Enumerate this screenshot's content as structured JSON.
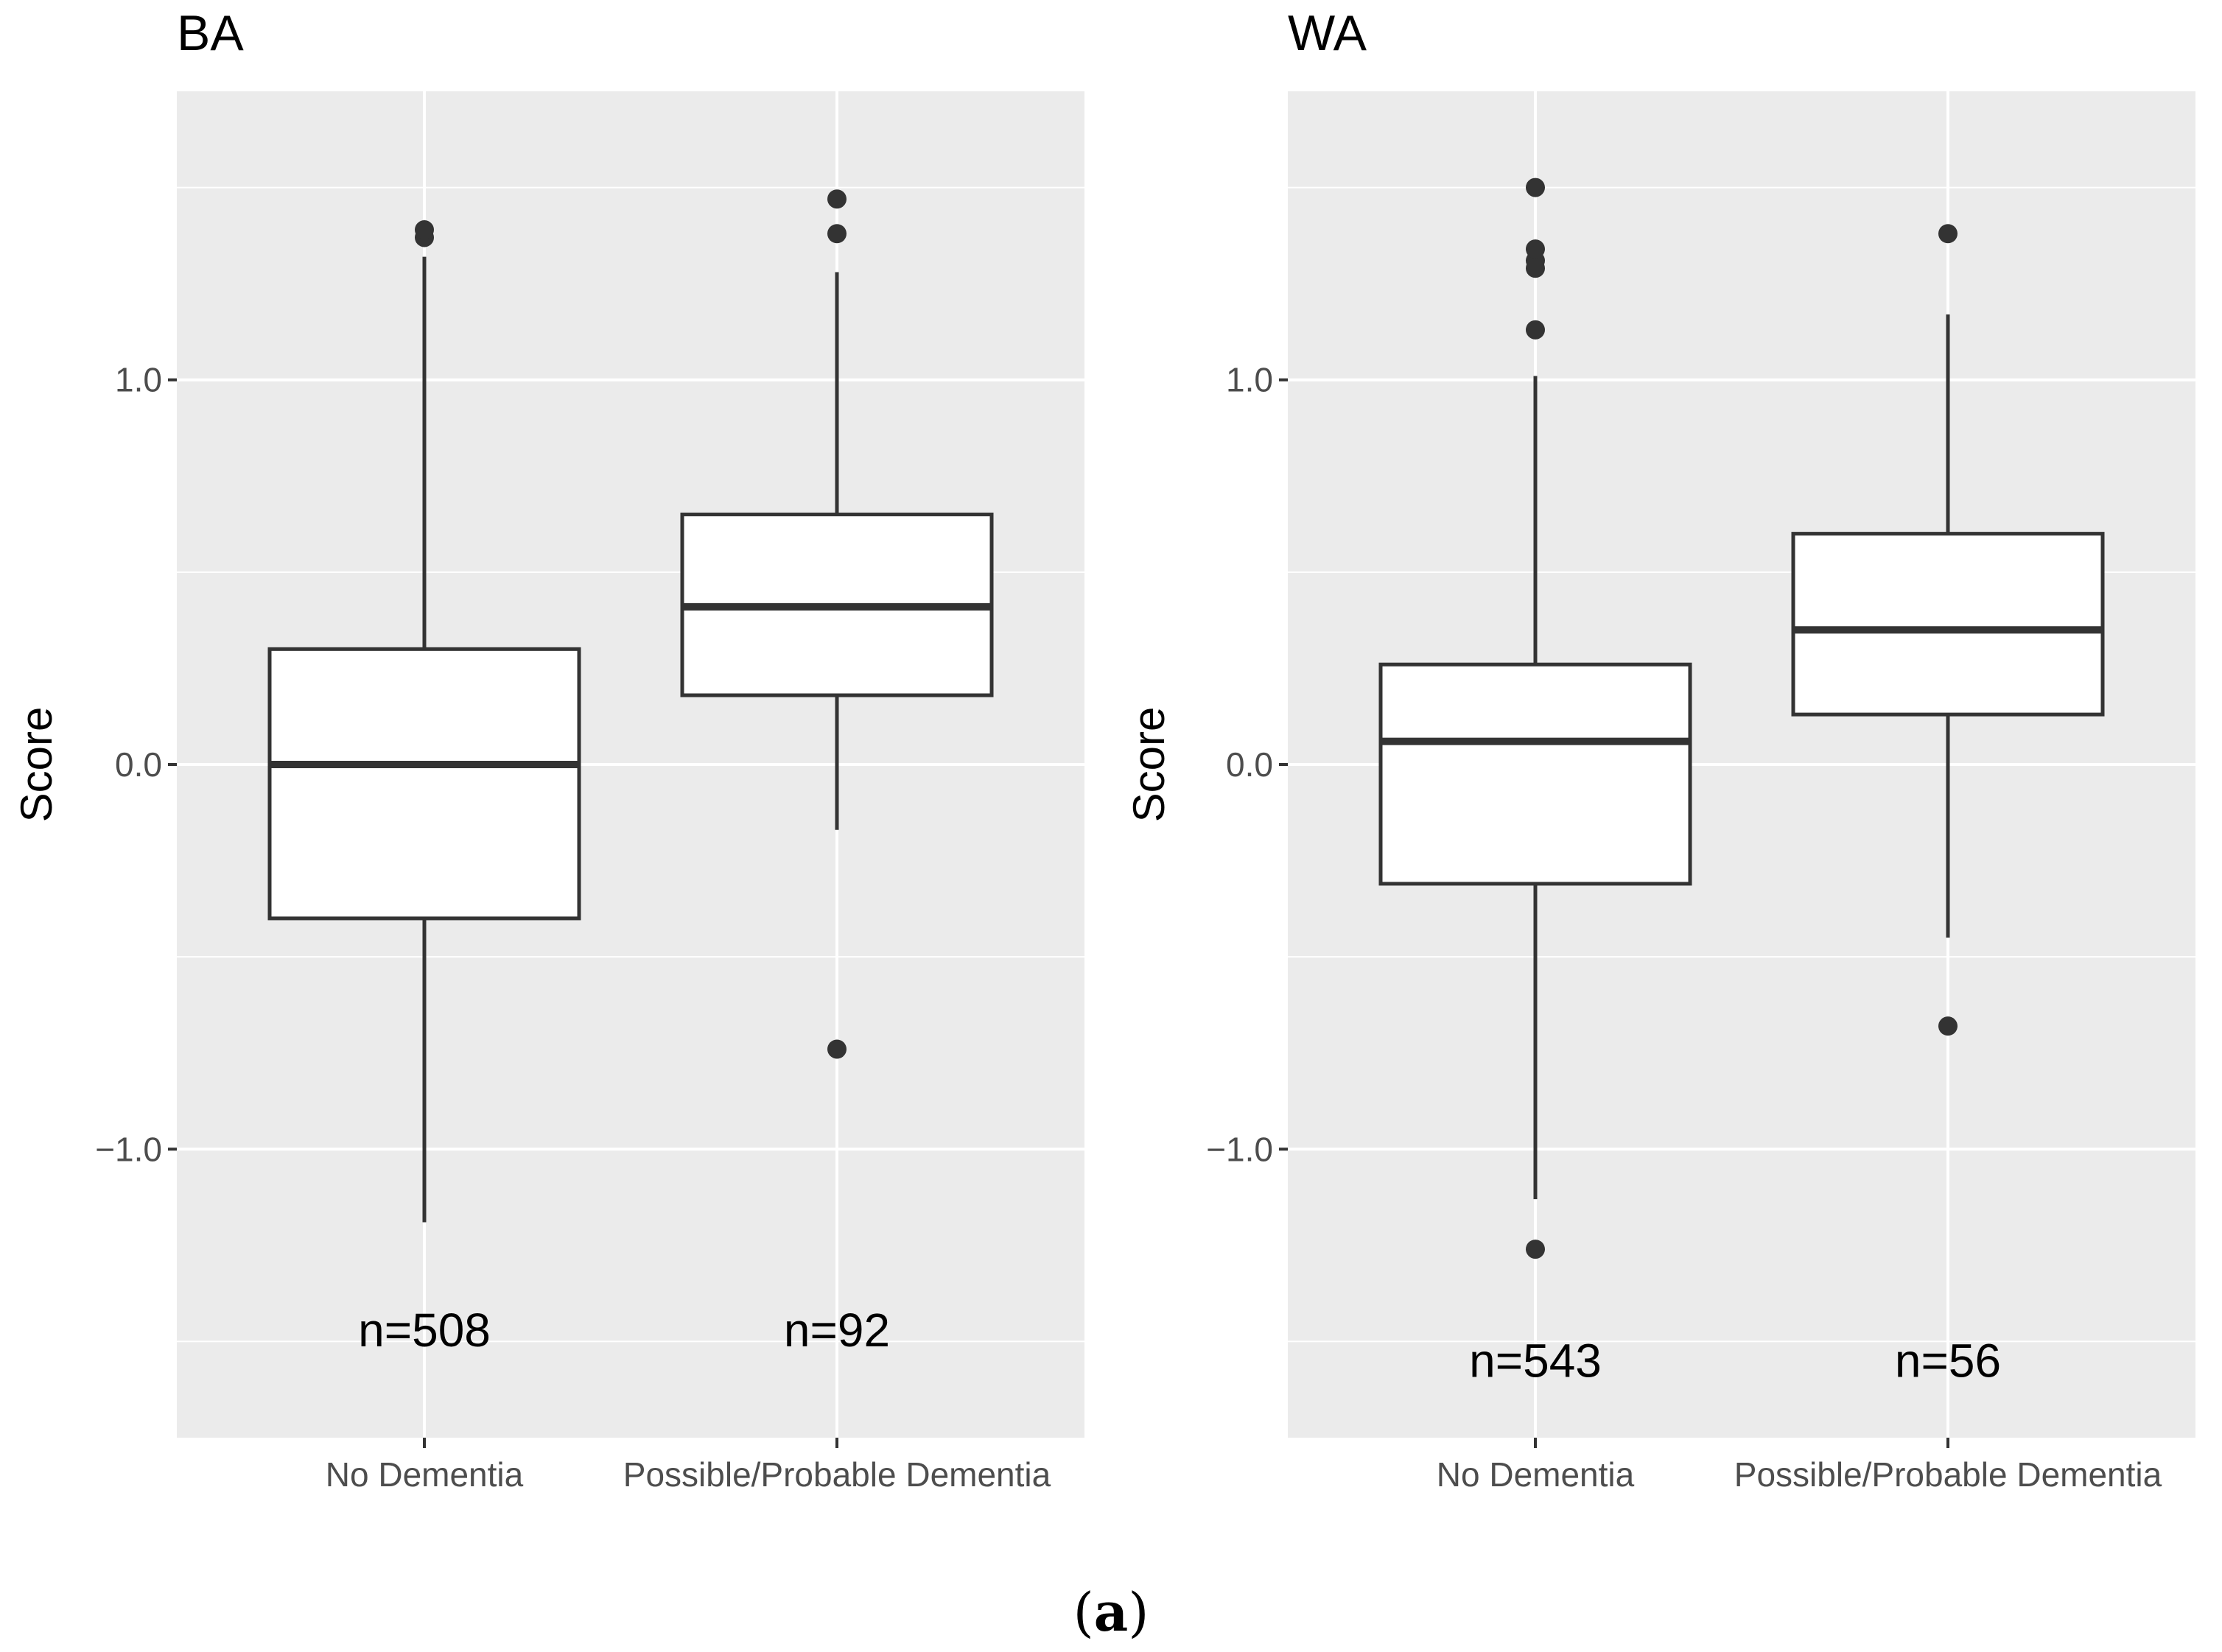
{
  "chart_data": [
    {
      "type": "box",
      "title": "BA",
      "ylabel": "Score",
      "xlabel": "",
      "ylim": [
        -1.75,
        1.75
      ],
      "yticks": [
        -1.0,
        0.0,
        1.0
      ],
      "ytick_labels": [
        "−1.0",
        "0.0",
        "1.0"
      ],
      "grid": true,
      "categories": [
        "No Dementia",
        "Possible/Probable Dementia"
      ],
      "boxes": [
        {
          "category": "No Dementia",
          "whisker_low": -1.19,
          "q1": -0.4,
          "median": 0.0,
          "q3": 0.3,
          "whisker_high": 1.32,
          "outliers": [
            1.37,
            1.39
          ],
          "n_label": "n=508",
          "n_value": -1.47
        },
        {
          "category": "Possible/Probable Dementia",
          "whisker_low": -0.17,
          "q1": 0.18,
          "median": 0.41,
          "q3": 0.65,
          "whisker_high": 1.28,
          "outliers": [
            1.38,
            1.47,
            -0.74
          ],
          "n_label": "n=92",
          "n_value": -1.47
        }
      ]
    },
    {
      "type": "box",
      "title": "WA",
      "ylabel": "Score",
      "xlabel": "",
      "ylim": [
        -1.75,
        1.75
      ],
      "yticks": [
        -1.0,
        0.0,
        1.0
      ],
      "ytick_labels": [
        "−1.0",
        "0.0",
        "1.0"
      ],
      "grid": true,
      "categories": [
        "No Dementia",
        "Possible/Probable Dementia"
      ],
      "boxes": [
        {
          "category": "No Dementia",
          "whisker_low": -1.13,
          "q1": -0.31,
          "median": 0.06,
          "q3": 0.26,
          "whisker_high": 1.01,
          "outliers": [
            -1.26,
            1.13,
            1.29,
            1.31,
            1.34,
            1.5
          ],
          "n_label": "n=543",
          "n_value": -1.55
        },
        {
          "category": "Possible/Probable Dementia",
          "whisker_low": -0.45,
          "q1": 0.13,
          "median": 0.35,
          "q3": 0.6,
          "whisker_high": 1.17,
          "outliers": [
            1.38,
            -0.68
          ],
          "n_label": "n=56",
          "n_value": -1.55
        }
      ]
    }
  ],
  "caption": "(a)",
  "colors": {
    "panel_bg": "#ebebeb",
    "grid": "#ffffff",
    "box_fill": "#ffffff",
    "box_stroke": "#333333",
    "tick_text": "#4d4d4d"
  }
}
